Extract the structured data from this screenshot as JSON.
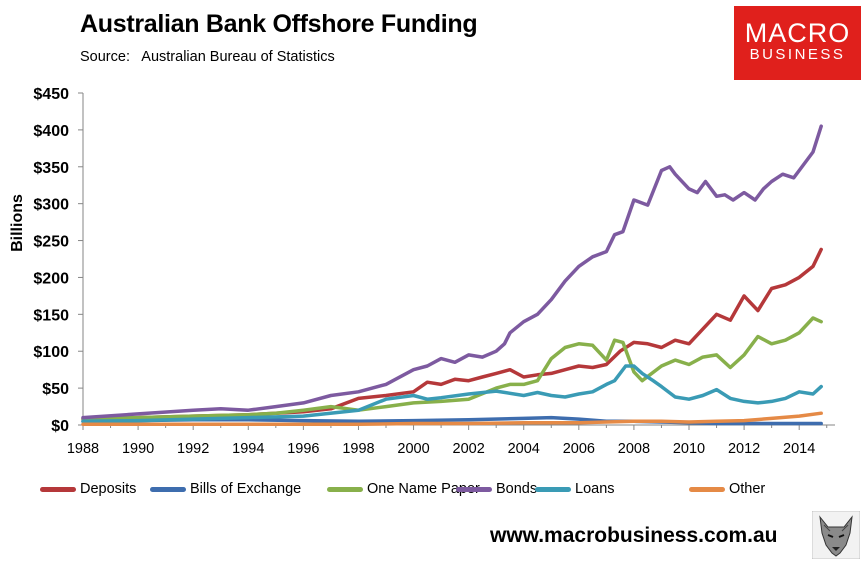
{
  "title": "Australian Bank Offshore Funding",
  "source_label": "Source:",
  "source_text": "Australian Bureau of Statistics",
  "logo": {
    "line1": "MACRO",
    "line2": "BUSINESS",
    "color": "#e0201c"
  },
  "website": "www.macrobusiness.com.au",
  "chart_data": {
    "type": "line",
    "ylabel": "Billions",
    "xlabel": "",
    "xlim": [
      1988,
      2015.3
    ],
    "ylim": [
      0,
      450
    ],
    "grid": false,
    "legend_position": "bottom",
    "x_ticks": [
      "1988",
      "1990",
      "1992",
      "1994",
      "1996",
      "1998",
      "2000",
      "2002",
      "2004",
      "2006",
      "2008",
      "2010",
      "2012",
      "2014"
    ],
    "y_ticks": [
      "$0",
      "$50",
      "$100",
      "$150",
      "$200",
      "$250",
      "$300",
      "$350",
      "$400",
      "$450"
    ],
    "series": [
      {
        "name": "Deposits",
        "color": "#b5383a",
        "x": [
          1988,
          1990,
          1992,
          1994,
          1995,
          1996,
          1997,
          1998,
          1999,
          2000,
          2000.5,
          2001,
          2001.5,
          2002,
          2002.5,
          2003,
          2003.5,
          2004,
          2004.5,
          2005,
          2005.5,
          2006,
          2006.5,
          2007,
          2007.5,
          2008,
          2008.5,
          2009,
          2009.5,
          2010,
          2010.5,
          2011,
          2011.5,
          2012,
          2012.5,
          2013,
          2013.5,
          2014,
          2014.5,
          2014.8
        ],
        "values": [
          8,
          10,
          12,
          14,
          16,
          18,
          22,
          36,
          40,
          45,
          58,
          55,
          62,
          60,
          65,
          70,
          75,
          65,
          68,
          70,
          75,
          80,
          78,
          82,
          100,
          112,
          110,
          105,
          115,
          110,
          130,
          150,
          142,
          175,
          155,
          185,
          190,
          200,
          215,
          238
        ]
      },
      {
        "name": "Bills of Exchange",
        "color": "#3e6dae",
        "x": [
          1988,
          1990,
          1992,
          1994,
          1996,
          1998,
          2000,
          2002,
          2004,
          2005,
          2006,
          2007,
          2008,
          2009,
          2010,
          2011,
          2012,
          2013,
          2014,
          2014.8
        ],
        "values": [
          5,
          6,
          7,
          7,
          6,
          5,
          6,
          7,
          9,
          10,
          8,
          5,
          5,
          4,
          3,
          2,
          2,
          2,
          2,
          2
        ]
      },
      {
        "name": "One Name Paper",
        "color": "#88b04b",
        "x": [
          1988,
          1990,
          1992,
          1994,
          1995,
          1996,
          1997,
          1998,
          1999,
          2000,
          2001,
          2002,
          2003,
          2003.5,
          2004,
          2004.5,
          2005,
          2005.5,
          2006,
          2006.5,
          2007,
          2007.3,
          2007.6,
          2008,
          2008.3,
          2009,
          2009.5,
          2010,
          2010.5,
          2011,
          2011.5,
          2012,
          2012.5,
          2013,
          2013.5,
          2014,
          2014.5,
          2014.8
        ],
        "values": [
          9,
          10,
          12,
          14,
          16,
          20,
          25,
          20,
          25,
          30,
          32,
          35,
          50,
          55,
          55,
          60,
          90,
          105,
          110,
          108,
          88,
          115,
          112,
          72,
          60,
          80,
          88,
          82,
          92,
          95,
          78,
          95,
          120,
          110,
          115,
          125,
          145,
          140
        ]
      },
      {
        "name": "Bonds",
        "color": "#7d5aa0",
        "x": [
          1988,
          1990,
          1992,
          1993,
          1994,
          1995,
          1996,
          1997,
          1998,
          1999,
          2000,
          2000.5,
          2001,
          2001.5,
          2002,
          2002.5,
          2003,
          2003.3,
          2003.5,
          2004,
          2004.5,
          2005,
          2005.5,
          2006,
          2006.5,
          2007,
          2007.3,
          2007.6,
          2008,
          2008.5,
          2009,
          2009.3,
          2009.5,
          2010,
          2010.3,
          2010.6,
          2011,
          2011.3,
          2011.6,
          2012,
          2012.4,
          2012.7,
          2013,
          2013.4,
          2013.8,
          2014,
          2014.5,
          2014.8
        ],
        "values": [
          10,
          15,
          20,
          22,
          20,
          25,
          30,
          40,
          45,
          55,
          75,
          80,
          90,
          85,
          95,
          92,
          100,
          110,
          125,
          140,
          150,
          170,
          195,
          215,
          228,
          235,
          258,
          262,
          305,
          298,
          345,
          350,
          340,
          320,
          315,
          330,
          310,
          312,
          305,
          315,
          305,
          320,
          330,
          340,
          335,
          345,
          370,
          405
        ]
      },
      {
        "name": "Loans",
        "color": "#3a9bb5",
        "x": [
          1988,
          1990,
          1992,
          1994,
          1996,
          1998,
          1999,
          2000,
          2000.5,
          2001,
          2002,
          2003,
          2004,
          2004.5,
          2005,
          2005.5,
          2006,
          2006.5,
          2007,
          2007.3,
          2007.7,
          2008,
          2008.3,
          2008.7,
          2009,
          2009.5,
          2010,
          2010.5,
          2011,
          2011.5,
          2012,
          2012.5,
          2013,
          2013.5,
          2014,
          2014.5,
          2014.8
        ],
        "values": [
          5,
          6,
          8,
          10,
          12,
          20,
          35,
          40,
          35,
          37,
          42,
          46,
          40,
          44,
          40,
          38,
          42,
          45,
          55,
          60,
          80,
          80,
          70,
          60,
          52,
          38,
          35,
          40,
          48,
          36,
          32,
          30,
          32,
          36,
          45,
          42,
          52
        ]
      },
      {
        "name": "Other",
        "color": "#e58a46",
        "x": [
          1988,
          1990,
          1992,
          1994,
          1996,
          1998,
          2000,
          2002,
          2004,
          2006,
          2008,
          2009,
          2010,
          2011,
          2012,
          2013,
          2014,
          2014.8
        ],
        "values": [
          1,
          1,
          1,
          1,
          1,
          1,
          2,
          2,
          3,
          3,
          5,
          5,
          4,
          5,
          6,
          9,
          12,
          16
        ]
      }
    ]
  }
}
